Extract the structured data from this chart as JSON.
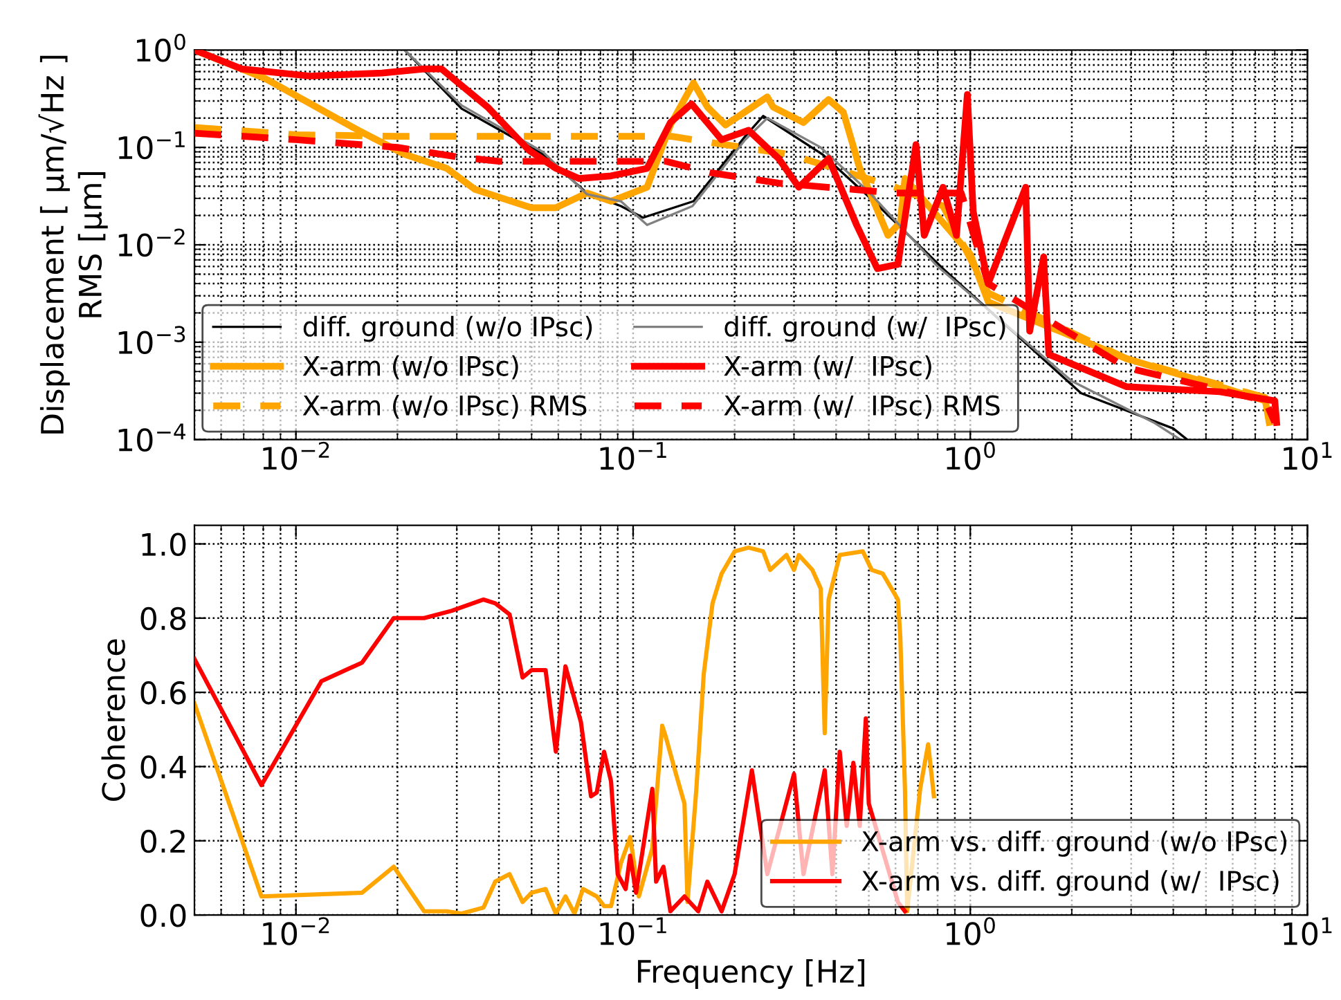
{
  "chart_data": [
    {
      "type": "line",
      "ylabel": "Displacement [ μm/√Hz ]\nRMS [μm]",
      "log": "xy",
      "xlim": [
        0.005,
        10
      ],
      "ylim": [
        0.0001,
        1
      ],
      "xticks": [
        {
          "value": 0.01,
          "label": "10$^{−2}$"
        },
        {
          "value": 0.1,
          "label": "10$^{−1}$"
        },
        {
          "value": 1,
          "label": "10$^{0}$"
        },
        {
          "value": 10,
          "label": "10$^{1}$"
        }
      ],
      "yticks": [
        {
          "value": 0.0001,
          "label": "10$^{−4}$"
        },
        {
          "value": 0.001,
          "label": "10$^{−3}$"
        },
        {
          "value": 0.01,
          "label": "10$^{−2}$"
        },
        {
          "value": 0.1,
          "label": "10$^{−1}$"
        },
        {
          "value": 1,
          "label": "10$^{0}$"
        }
      ],
      "grid": true,
      "legend": "bottom left",
      "marker": "none",
      "series": [
        {
          "name": "diff. ground (w/o IPsc)",
          "color": "#000000",
          "line_style": "solid",
          "x": [
            0.021,
            0.031,
            0.054,
            0.073,
            0.092,
            0.107,
            0.151,
            0.215,
            0.243,
            0.364,
            0.517,
            0.83,
            2.13,
            4.0,
            4.4
          ],
          "values": [
            1.0,
            0.25,
            0.085,
            0.034,
            0.025,
            0.019,
            0.028,
            0.13,
            0.21,
            0.085,
            0.028,
            0.0057,
            0.0003,
            0.00013,
            0.0001
          ]
        },
        {
          "name": "X-arm (w/o IPsc)",
          "color": "#ffa500",
          "line_style": "solid",
          "x": [
            0.005,
            0.0081,
            0.0153,
            0.021,
            0.028,
            0.034,
            0.05,
            0.059,
            0.073,
            0.086,
            0.11,
            0.129,
            0.151,
            0.166,
            0.188,
            0.25,
            0.26,
            0.32,
            0.38,
            0.42,
            0.47,
            0.57,
            0.62,
            0.64,
            1.0,
            1.13,
            2.9,
            5.5,
            7.5,
            7.7
          ],
          "values": [
            1.0,
            0.51,
            0.15,
            0.085,
            0.061,
            0.037,
            0.024,
            0.024,
            0.034,
            0.028,
            0.039,
            0.17,
            0.46,
            0.26,
            0.17,
            0.33,
            0.26,
            0.18,
            0.31,
            0.23,
            0.061,
            0.0125,
            0.017,
            0.048,
            0.008,
            0.0026,
            0.00068,
            0.00035,
            0.00025,
            0.00015
          ]
        },
        {
          "name": "X-arm (w/o IPsc) RMS",
          "color": "#ffa500",
          "line_style": "dashed",
          "x": [
            0.005,
            0.01,
            0.02,
            0.1,
            0.13,
            0.15,
            0.29,
            0.6,
            0.83,
            1.13,
            2.9,
            7.5,
            7.7
          ],
          "values": [
            0.16,
            0.135,
            0.13,
            0.13,
            0.13,
            0.12,
            0.085,
            0.039,
            0.025,
            0.0032,
            0.00068,
            0.00027,
            0.00015
          ]
        },
        {
          "name": "diff. ground (w/  IPsc)",
          "color": "#808080",
          "line_style": "solid",
          "x": [
            0.021,
            0.031,
            0.054,
            0.073,
            0.092,
            0.11,
            0.15,
            0.215,
            0.25,
            0.36,
            0.5,
            0.8,
            2.0,
            3.5,
            4.2
          ],
          "values": [
            1.0,
            0.27,
            0.09,
            0.033,
            0.028,
            0.016,
            0.025,
            0.12,
            0.2,
            0.1,
            0.035,
            0.006,
            0.0004,
            0.00015,
            0.0001
          ]
        },
        {
          "name": "X-arm (w/  IPsc)",
          "color": "#ff0000",
          "line_style": "solid",
          "x": [
            0.005,
            0.0069,
            0.011,
            0.018,
            0.024,
            0.027,
            0.037,
            0.049,
            0.059,
            0.069,
            0.086,
            0.11,
            0.129,
            0.149,
            0.183,
            0.22,
            0.27,
            0.31,
            0.38,
            0.46,
            0.53,
            0.61,
            0.69,
            0.73,
            0.83,
            0.91,
            0.98,
            1.02,
            1.13,
            1.46,
            1.5,
            1.65,
            1.71,
            2.9,
            5.5,
            8.0,
            8.1
          ],
          "values": [
            1.0,
            0.64,
            0.54,
            0.58,
            0.64,
            0.64,
            0.26,
            0.094,
            0.061,
            0.048,
            0.051,
            0.061,
            0.18,
            0.28,
            0.12,
            0.15,
            0.077,
            0.039,
            0.077,
            0.016,
            0.0057,
            0.0063,
            0.107,
            0.0125,
            0.039,
            0.0125,
            0.35,
            0.022,
            0.004,
            0.039,
            0.0013,
            0.0075,
            0.00075,
            0.00035,
            0.00031,
            0.00025,
            0.00015
          ]
        },
        {
          "name": "X-arm (w/  IPsc) RMS",
          "color": "#ff0000",
          "line_style": "dashed",
          "x": [
            0.005,
            0.01,
            0.02,
            0.03,
            0.04,
            0.1,
            0.125,
            0.17,
            0.27,
            0.6,
            0.94,
            1.13,
            2.9,
            7.5,
            8.0
          ],
          "values": [
            0.14,
            0.12,
            0.1,
            0.08,
            0.072,
            0.072,
            0.072,
            0.055,
            0.043,
            0.034,
            0.034,
            0.004,
            0.00055,
            0.00025,
            0.00015
          ]
        }
      ]
    },
    {
      "type": "line",
      "xlabel": "Frequency [Hz]",
      "ylabel": "Coherence",
      "log": "x",
      "xlim": [
        0.005,
        10
      ],
      "ylim": [
        0,
        1.05
      ],
      "xticks": [
        {
          "value": 0.01,
          "label": "10$^{−2}$"
        },
        {
          "value": 0.1,
          "label": "10$^{−1}$"
        },
        {
          "value": 1,
          "label": "10$^{0}$"
        },
        {
          "value": 10,
          "label": "10$^{1}$"
        }
      ],
      "yticks": [
        {
          "value": 0,
          "label": "0.0"
        },
        {
          "value": 0.2,
          "label": "0.2"
        },
        {
          "value": 0.4,
          "label": "0.4"
        },
        {
          "value": 0.6,
          "label": "0.6"
        },
        {
          "value": 0.8,
          "label": "0.8"
        },
        {
          "value": 1.0,
          "label": "1.0"
        }
      ],
      "grid": true,
      "legend": "bottom right",
      "marker": "none",
      "series": [
        {
          "name": "X-arm vs. diff. ground (w/o IPsc)",
          "color": "#ffa500",
          "line_style": "solid",
          "x": [
            0.005,
            0.0079,
            0.0157,
            0.0195,
            0.024,
            0.028,
            0.031,
            0.036,
            0.039,
            0.043,
            0.047,
            0.05,
            0.055,
            0.059,
            0.063,
            0.067,
            0.071,
            0.078,
            0.082,
            0.086,
            0.092,
            0.098,
            0.104,
            0.114,
            0.122,
            0.125,
            0.134,
            0.142,
            0.145,
            0.154,
            0.162,
            0.172,
            0.183,
            0.2,
            0.22,
            0.243,
            0.255,
            0.285,
            0.3,
            0.31,
            0.34,
            0.36,
            0.37,
            0.38,
            0.41,
            0.48,
            0.51,
            0.55,
            0.61,
            0.62,
            0.64,
            0.65,
            0.71,
            0.75,
            0.78
          ],
          "values": [
            0.57,
            0.05,
            0.06,
            0.13,
            0.01,
            0.01,
            0.004,
            0.02,
            0.09,
            0.11,
            0.035,
            0.06,
            0.07,
            0.004,
            0.05,
            0.004,
            0.07,
            0.05,
            0.024,
            0.024,
            0.14,
            0.21,
            0.05,
            0.18,
            0.51,
            0.48,
            0.38,
            0.3,
            0.035,
            0.34,
            0.65,
            0.84,
            0.92,
            0.98,
            0.99,
            0.98,
            0.93,
            0.97,
            0.93,
            0.97,
            0.93,
            0.88,
            0.49,
            0.85,
            0.97,
            0.98,
            0.93,
            0.92,
            0.85,
            0.75,
            0.34,
            0.01,
            0.34,
            0.46,
            0.32
          ]
        },
        {
          "name": "X-arm vs. diff. ground (w/  IPsc)",
          "color": "#ff0000",
          "line_style": "solid",
          "x": [
            0.005,
            0.0079,
            0.0119,
            0.0157,
            0.0195,
            0.024,
            0.029,
            0.036,
            0.039,
            0.043,
            0.047,
            0.05,
            0.055,
            0.059,
            0.063,
            0.07,
            0.075,
            0.078,
            0.082,
            0.086,
            0.09,
            0.095,
            0.098,
            0.102,
            0.114,
            0.117,
            0.123,
            0.129,
            0.142,
            0.156,
            0.166,
            0.183,
            0.2,
            0.225,
            0.25,
            0.3,
            0.32,
            0.37,
            0.39,
            0.41,
            0.43,
            0.45,
            0.47,
            0.49,
            0.5,
            0.61,
            0.64
          ],
          "values": [
            0.69,
            0.35,
            0.63,
            0.68,
            0.8,
            0.8,
            0.82,
            0.85,
            0.84,
            0.81,
            0.64,
            0.66,
            0.66,
            0.44,
            0.67,
            0.52,
            0.32,
            0.33,
            0.44,
            0.36,
            0.11,
            0.07,
            0.16,
            0.06,
            0.34,
            0.09,
            0.13,
            0.01,
            0.05,
            0.01,
            0.09,
            0.01,
            0.11,
            0.39,
            0.11,
            0.38,
            0.11,
            0.39,
            0.11,
            0.44,
            0.24,
            0.41,
            0.24,
            0.53,
            0.3,
            0.035,
            0.01
          ]
        }
      ]
    }
  ]
}
